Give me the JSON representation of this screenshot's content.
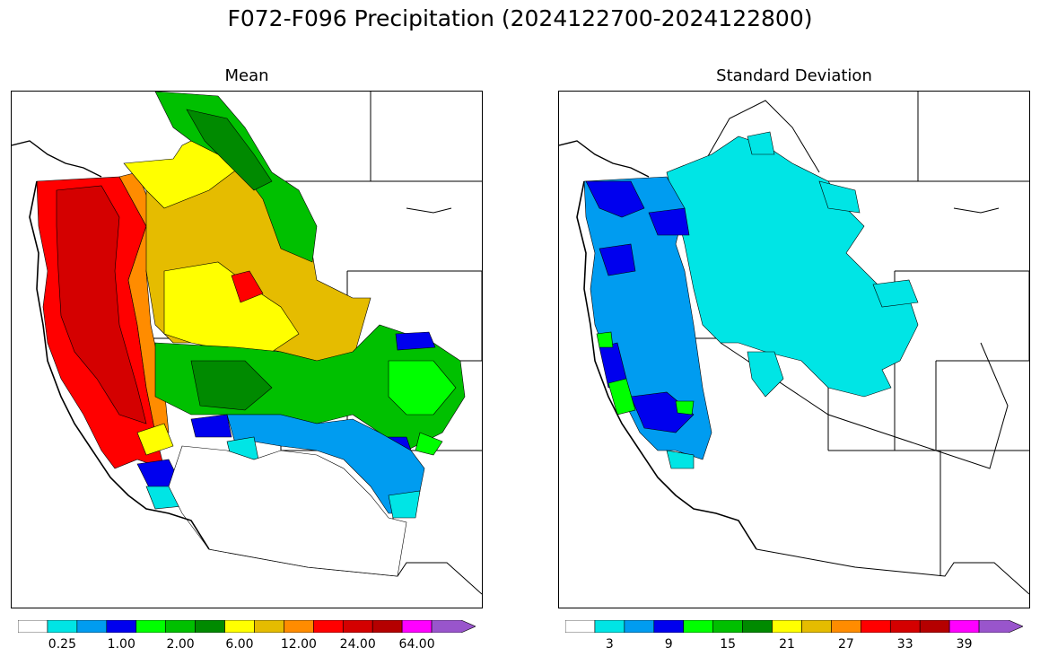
{
  "title": "F072-F096 Precipitation (2024122700-2024122800)",
  "panels": [
    {
      "title": "Mean",
      "colorbar": {
        "colors": [
          "#ffffff",
          "#00e5e5",
          "#009cf0",
          "#0000ee",
          "#00ff00",
          "#00c000",
          "#008a00",
          "#ffff00",
          "#e5bc00",
          "#ff8c00",
          "#ff0000",
          "#d40000",
          "#b50000",
          "#ff00ff",
          "#9955cc"
        ],
        "tick_labels": [
          "0.25",
          "1.00",
          "2.00",
          "6.00",
          "12.00",
          "24.00",
          "64.00"
        ],
        "extend": "max"
      },
      "regions": [
        {
          "name": "coastal-pacific-northwest-california",
          "category": "24.00+",
          "color": "#ff0000"
        },
        {
          "name": "coastal-ranges-heaviest",
          "category": "24.00+",
          "color": "#d40000"
        },
        {
          "name": "cascade-east-slopes",
          "category": "12.00",
          "color": "#ff8c00"
        },
        {
          "name": "columbia-basin-idaho",
          "category": "6.00-12.00",
          "color": "#e5bc00"
        },
        {
          "name": "interior-plateaus",
          "category": "6.00",
          "color": "#ffff00"
        },
        {
          "name": "northern-rockies",
          "category": "2.00-6.00",
          "color": "#00c000"
        },
        {
          "name": "rockies-dark-green",
          "category": "2.00",
          "color": "#008a00"
        },
        {
          "name": "great-basin-south",
          "category": "1.00",
          "color": "#009cf0"
        },
        {
          "name": "southwest-desert",
          "category": "<0.25",
          "color": "#ffffff"
        }
      ]
    },
    {
      "title": "Standard Deviation",
      "colorbar": {
        "colors": [
          "#ffffff",
          "#00e5e5",
          "#009cf0",
          "#0000ee",
          "#00ff00",
          "#00c000",
          "#008a00",
          "#ffff00",
          "#e5bc00",
          "#ff8c00",
          "#ff0000",
          "#d40000",
          "#b50000",
          "#ff00ff",
          "#9955cc"
        ],
        "tick_labels": [
          "3",
          "9",
          "15",
          "21",
          "27",
          "33",
          "39"
        ],
        "extend": "max"
      },
      "regions": [
        {
          "name": "coast-high-spread",
          "category": "9-12",
          "color": "#0000ee"
        },
        {
          "name": "coast-moderate-spread",
          "category": "6-9",
          "color": "#009cf0"
        },
        {
          "name": "interior-northwest",
          "category": "3-6",
          "color": "#00e5e5"
        },
        {
          "name": "north-coast-california-peak",
          "category": "12-15",
          "color": "#00ff00"
        },
        {
          "name": "southwest",
          "category": "<3",
          "color": "#ffffff"
        }
      ]
    }
  ]
}
